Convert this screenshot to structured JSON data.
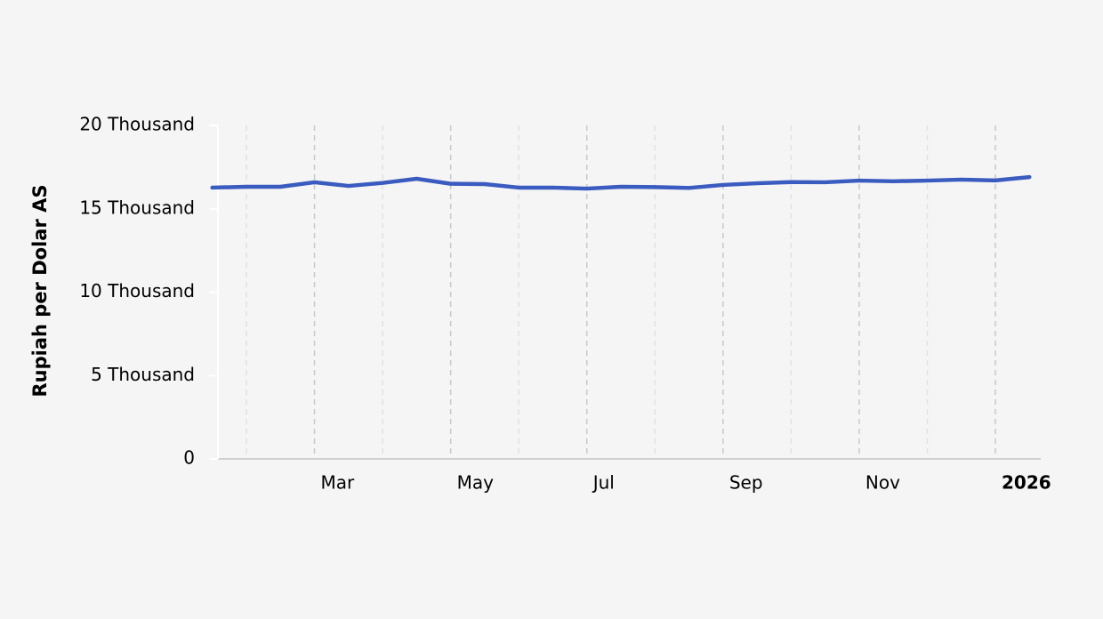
{
  "chart_data": {
    "type": "line",
    "y_label": "Rupiah per Dolar AS",
    "categories": [
      null,
      null,
      null,
      "Mar",
      null,
      null,
      null,
      "May",
      null,
      null,
      null,
      "Jul",
      null,
      null,
      null,
      "Sep",
      null,
      null,
      null,
      "Nov",
      null,
      null,
      null,
      "2026",
      null
    ],
    "series": [
      {
        "name": "Rupiah per Dolar AS",
        "color": "#3a5bbf",
        "values": [
          16270,
          16320,
          16320,
          16590,
          16370,
          16550,
          16800,
          16500,
          16480,
          16270,
          16270,
          16210,
          16320,
          16300,
          16250,
          16430,
          16530,
          16600,
          16590,
          16690,
          16650,
          16690,
          16750,
          16700,
          16900
        ]
      }
    ],
    "ylim": [
      0,
      20000
    ],
    "yticks": [
      0,
      {
        "value": 5000,
        "label": "5 Thousand"
      },
      {
        "value": 10000,
        "label": "10 Thousand"
      },
      {
        "value": 15000,
        "label": "15 Thousand"
      },
      {
        "value": 20000,
        "label": "20 Thousand"
      }
    ],
    "grid": true
  }
}
